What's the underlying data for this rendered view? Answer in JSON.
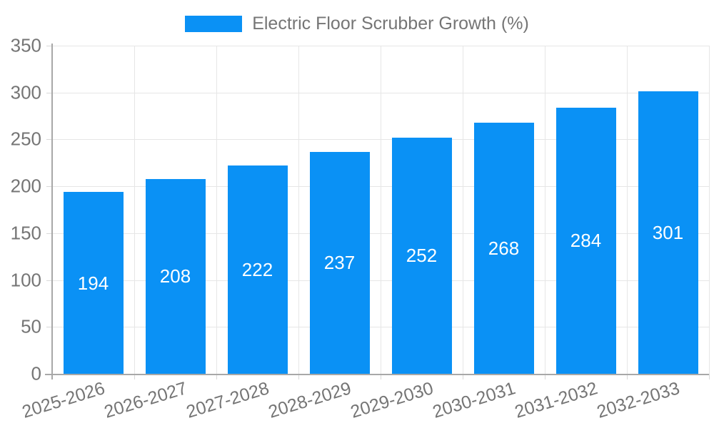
{
  "chart_data": {
    "type": "bar",
    "title": "Electric Floor Scrubber Growth (%)",
    "categories": [
      "2025-2026",
      "2026-2027",
      "2027-2028",
      "2028-2029",
      "2029-2030",
      "2030-2031",
      "2031-2032",
      "2032-2033"
    ],
    "values": [
      194,
      208,
      222,
      237,
      252,
      268,
      284,
      301
    ],
    "xlabel": "",
    "ylabel": "",
    "ylim": [
      0,
      350
    ],
    "yticks": [
      0,
      50,
      100,
      150,
      200,
      250,
      300,
      350
    ],
    "grid": true,
    "legend_position": "top",
    "value_labels_shown": true,
    "colors": {
      "bar": "#0a91f5",
      "grid": "#e6e6e6",
      "axis": "#a8a8a8",
      "tick": "#d9d9d9",
      "tick_text": "#757575",
      "value_label": "#ffffff",
      "background": "#ffffff"
    }
  }
}
